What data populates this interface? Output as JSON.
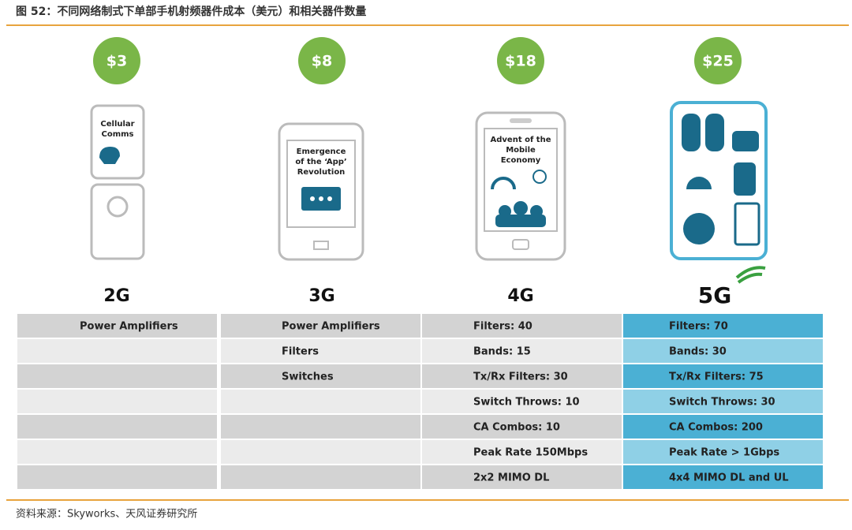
{
  "title": "图 52：不同网络制式下单部手机射频器件成本（美元）和相关器件数量",
  "columns": [
    {
      "cost": "$3",
      "phone_text": [
        "Cellular",
        "Comms"
      ],
      "generation": "2G",
      "items": [
        "Power Amplifiers"
      ]
    },
    {
      "cost": "$8",
      "phone_text": [
        "Emergence",
        "of the ‘App’",
        "Revolution"
      ],
      "generation": "3G",
      "items": [
        "Power Amplifiers",
        "Filters",
        "Switches"
      ]
    },
    {
      "cost": "$18",
      "phone_text": [
        "Advent of the",
        "Mobile",
        "Economy"
      ],
      "generation": "4G",
      "items": [
        "Filters: 40",
        "Bands: 15",
        "Tx/Rx Filters: 30",
        "Switch Throws: 10",
        "CA Combos: 10",
        "Peak Rate 150Mbps",
        "2x2 MIMO DL"
      ]
    },
    {
      "cost": "$25",
      "generation": "5G",
      "items": [
        "Filters: 70",
        "Bands: 30",
        "Tx/Rx Filters: 75",
        "Switch Throws: 30",
        "CA Combos: 200",
        "Peak Rate > 1Gbps",
        "4x4 MIMO DL and UL"
      ]
    }
  ],
  "source": "资料来源：Skyworks、天风证券研究所"
}
